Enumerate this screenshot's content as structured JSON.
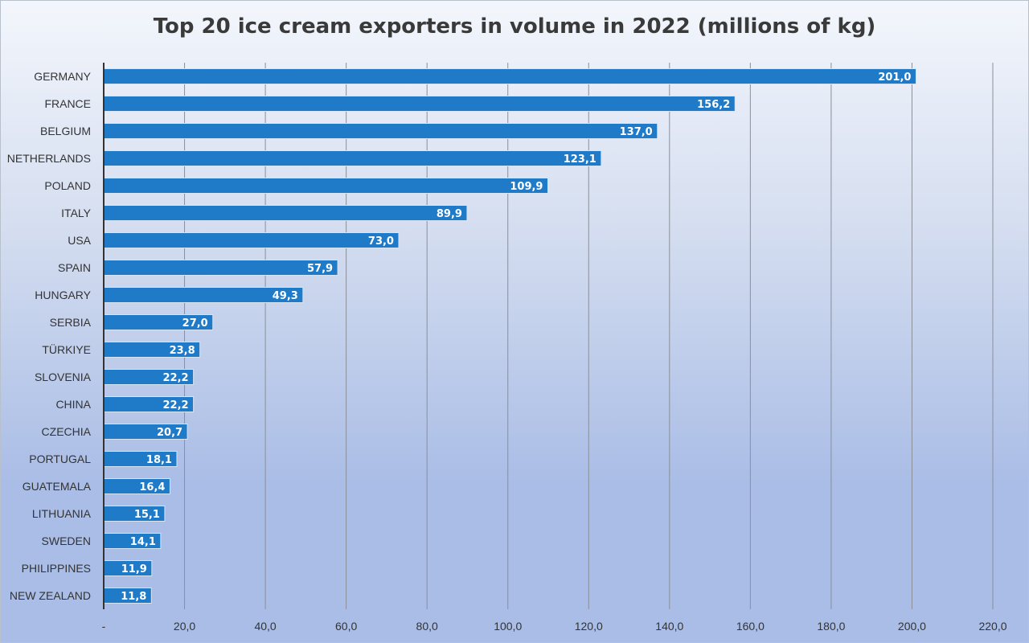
{
  "chart_data": {
    "type": "bar",
    "orientation": "horizontal",
    "title": "Top 20 ice cream exporters in volume in 2022 (millions of kg)",
    "categories": [
      "GERMANY",
      "FRANCE",
      "BELGIUM",
      "NETHERLANDS",
      "POLAND",
      "ITALY",
      "USA",
      "SPAIN",
      "HUNGARY",
      "SERBIA",
      "TÜRKIYE",
      "SLOVENIA",
      "CHINA",
      "CZECHIA",
      "PORTUGAL",
      "GUATEMALA",
      "LITHUANIA",
      "SWEDEN",
      "PHILIPPINES",
      "NEW ZEALAND"
    ],
    "values": [
      201.0,
      156.2,
      137.0,
      123.1,
      109.9,
      89.9,
      73.0,
      57.9,
      49.3,
      27.0,
      23.8,
      22.2,
      22.2,
      20.7,
      18.1,
      16.4,
      15.1,
      14.1,
      11.9,
      11.8
    ],
    "data_labels": [
      "201,0",
      "156,2",
      "137,0",
      "123,1",
      "109,9",
      "89,9",
      "73,0",
      "57,9",
      "49,3",
      "27,0",
      "23,8",
      "22,2",
      "22,2",
      "20,7",
      "18,1",
      "16,4",
      "15,1",
      "14,1",
      "11,9",
      "11,8"
    ],
    "x_ticks": [
      0,
      20,
      40,
      60,
      80,
      100,
      120,
      140,
      160,
      180,
      200,
      220
    ],
    "x_tick_labels": [
      "-",
      "20,0",
      "40,0",
      "60,0",
      "80,0",
      "100,0",
      "120,0",
      "140,0",
      "160,0",
      "180,0",
      "200,0",
      "220,0"
    ],
    "xlim": [
      0,
      220
    ],
    "grid": "vertical",
    "legend": "none",
    "bar_color": "#1f7bc8",
    "xlabel": "",
    "ylabel": ""
  }
}
